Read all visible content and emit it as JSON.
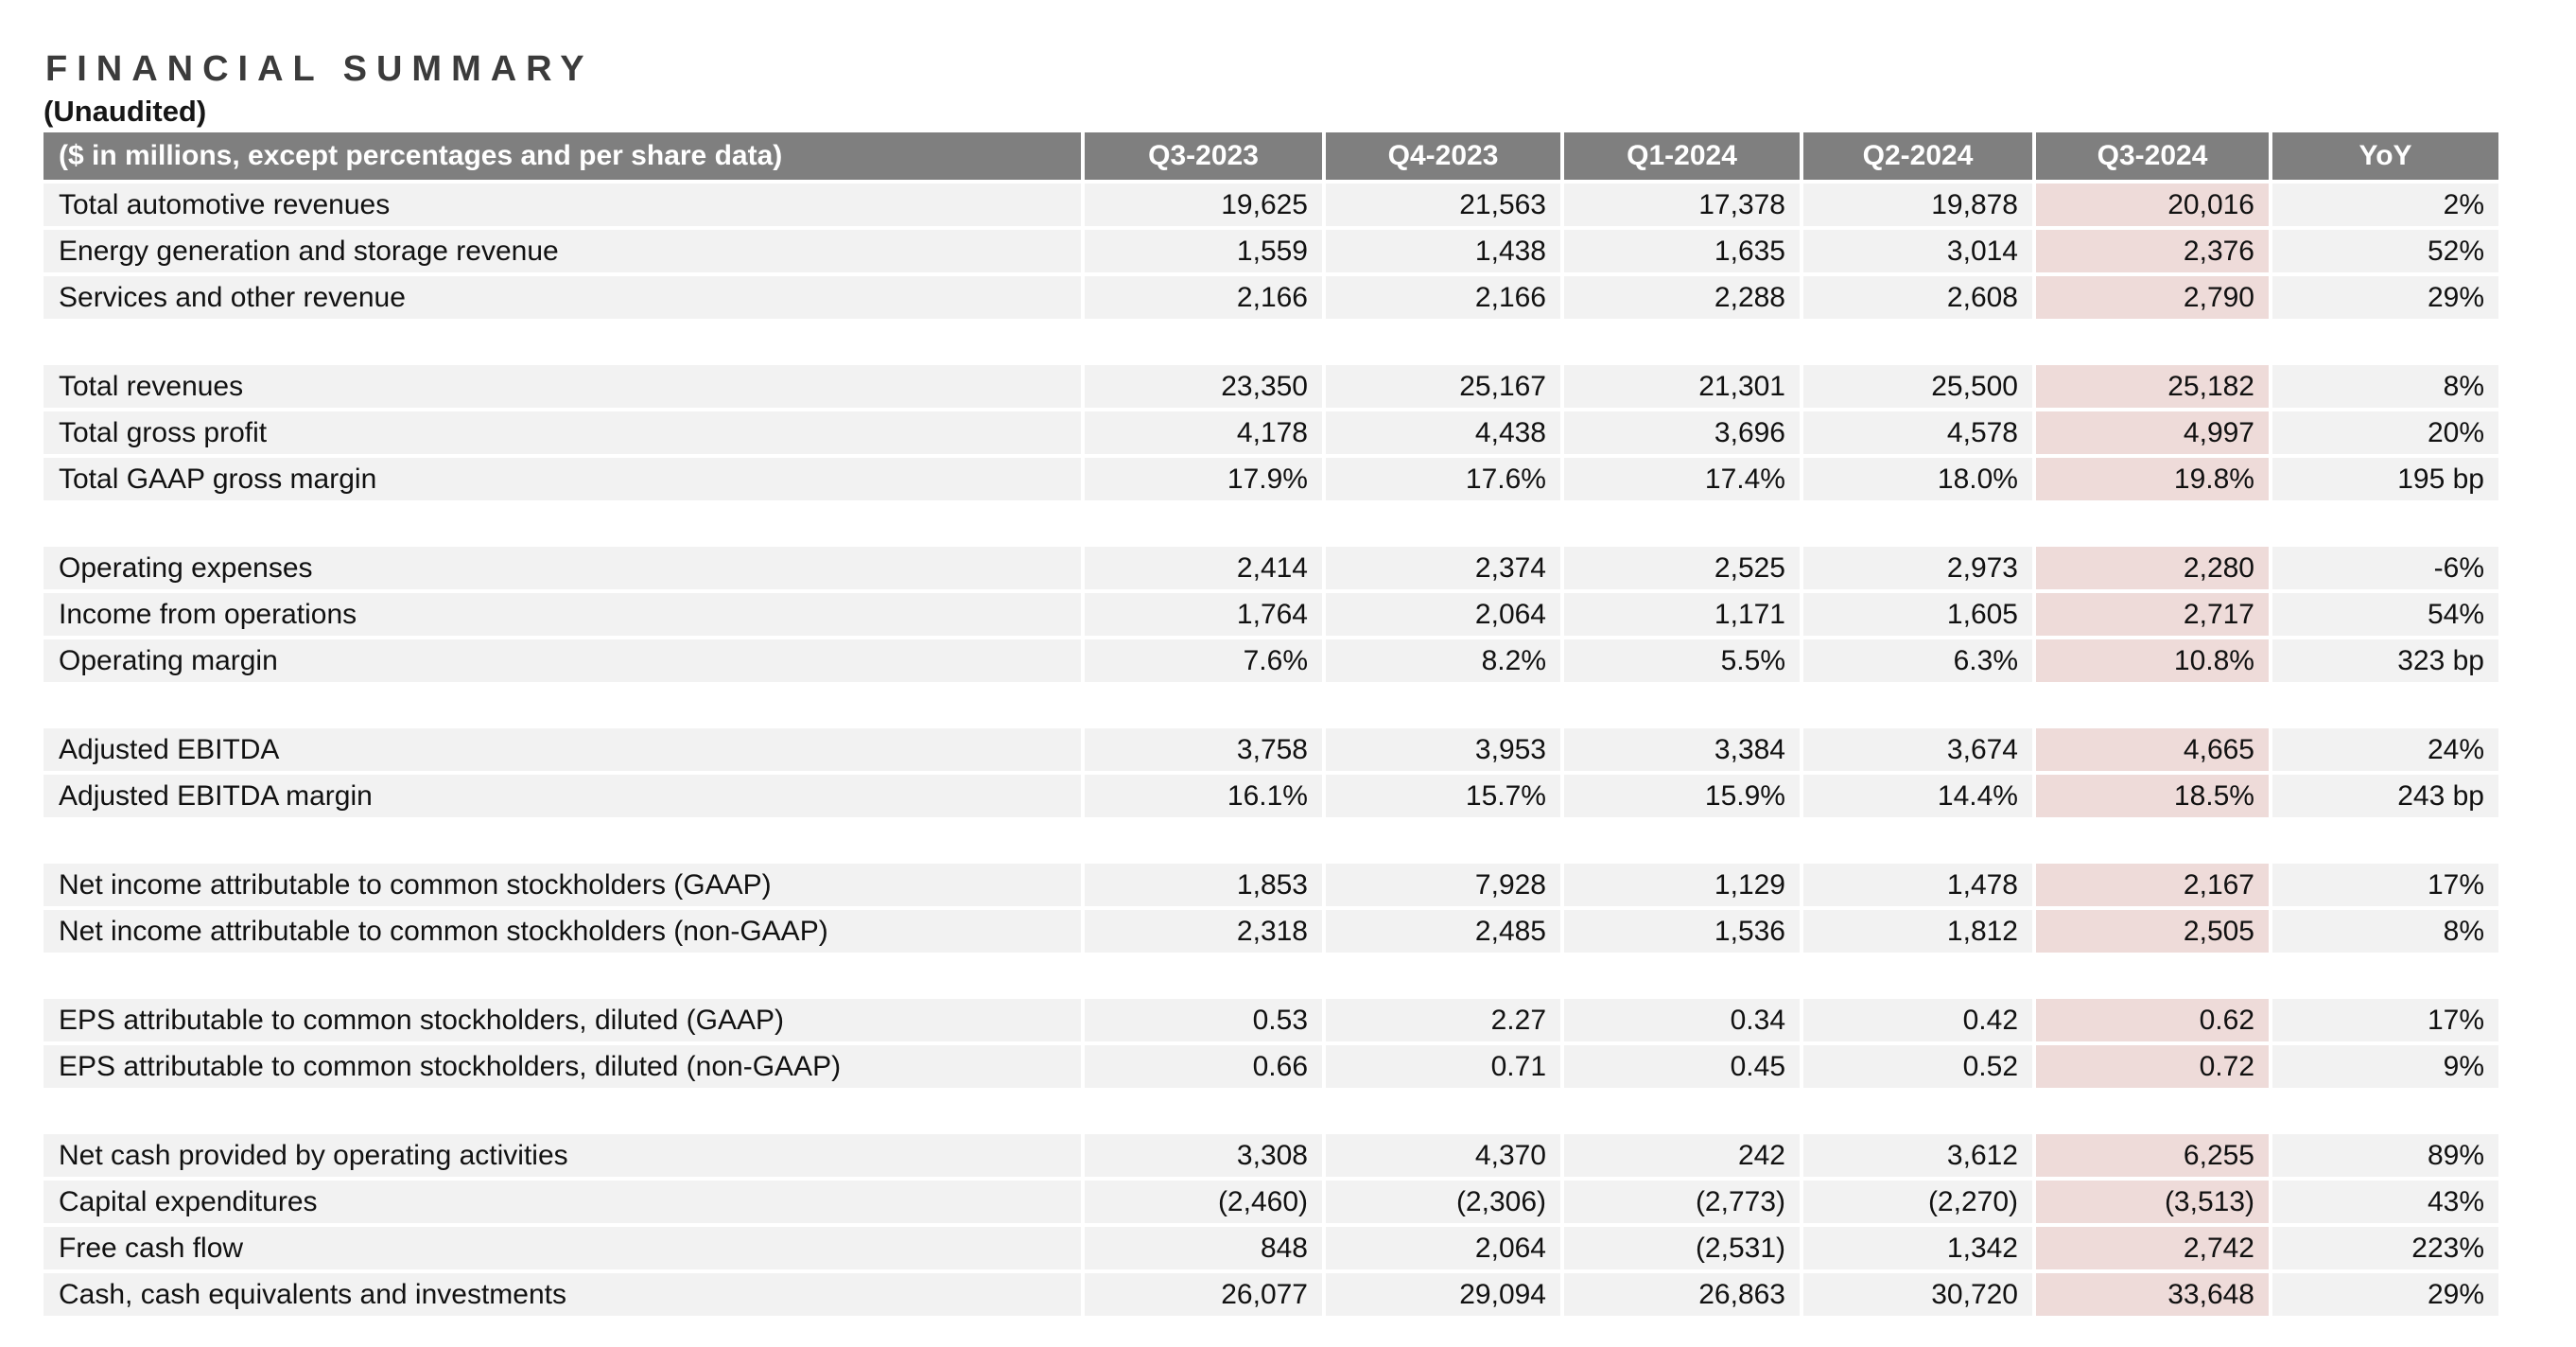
{
  "page": {
    "title": "FINANCIAL SUMMARY",
    "subtitle": "(Unaudited)"
  },
  "table": {
    "unit_label": "($ in millions, except percentages and per share data)",
    "columns": [
      "Q3-2023",
      "Q4-2023",
      "Q1-2024",
      "Q2-2024",
      "Q3-2024",
      "YoY"
    ],
    "highlight_column": "Q3-2024",
    "colors": {
      "header_bg": "#7f7f7f",
      "header_text": "#ffffff",
      "row_bg": "#f2f2f2",
      "highlight_bg": "#eedbd9",
      "title_text": "#3b3b3b"
    },
    "groups": [
      {
        "rows": [
          {
            "label": "Total automotive revenues",
            "values": [
              "19,625",
              "21,563",
              "17,378",
              "19,878",
              "20,016"
            ],
            "yoy": "2%"
          },
          {
            "label": "Energy generation and storage revenue",
            "values": [
              "1,559",
              "1,438",
              "1,635",
              "3,014",
              "2,376"
            ],
            "yoy": "52%"
          },
          {
            "label": "Services and other revenue",
            "values": [
              "2,166",
              "2,166",
              "2,288",
              "2,608",
              "2,790"
            ],
            "yoy": "29%"
          }
        ]
      },
      {
        "rows": [
          {
            "label": "Total revenues",
            "values": [
              "23,350",
              "25,167",
              "21,301",
              "25,500",
              "25,182"
            ],
            "yoy": "8%"
          },
          {
            "label": "Total gross profit",
            "values": [
              "4,178",
              "4,438",
              "3,696",
              "4,578",
              "4,997"
            ],
            "yoy": "20%"
          },
          {
            "label": "Total GAAP gross margin",
            "values": [
              "17.9%",
              "17.6%",
              "17.4%",
              "18.0%",
              "19.8%"
            ],
            "yoy": "195 bp"
          }
        ]
      },
      {
        "rows": [
          {
            "label": "Operating expenses",
            "values": [
              "2,414",
              "2,374",
              "2,525",
              "2,973",
              "2,280"
            ],
            "yoy": "-6%"
          },
          {
            "label": "Income from operations",
            "values": [
              "1,764",
              "2,064",
              "1,171",
              "1,605",
              "2,717"
            ],
            "yoy": "54%"
          },
          {
            "label": "Operating margin",
            "values": [
              "7.6%",
              "8.2%",
              "5.5%",
              "6.3%",
              "10.8%"
            ],
            "yoy": "323 bp"
          }
        ]
      },
      {
        "rows": [
          {
            "label": "Adjusted EBITDA",
            "values": [
              "3,758",
              "3,953",
              "3,384",
              "3,674",
              "4,665"
            ],
            "yoy": "24%"
          },
          {
            "label": "Adjusted EBITDA margin",
            "values": [
              "16.1%",
              "15.7%",
              "15.9%",
              "14.4%",
              "18.5%"
            ],
            "yoy": "243 bp"
          }
        ]
      },
      {
        "rows": [
          {
            "label": "Net income attributable to common stockholders (GAAP)",
            "values": [
              "1,853",
              "7,928",
              "1,129",
              "1,478",
              "2,167"
            ],
            "yoy": "17%"
          },
          {
            "label": "Net income attributable to common stockholders (non-GAAP)",
            "values": [
              "2,318",
              "2,485",
              "1,536",
              "1,812",
              "2,505"
            ],
            "yoy": "8%"
          }
        ]
      },
      {
        "rows": [
          {
            "label": "EPS attributable to common stockholders, diluted (GAAP)",
            "values": [
              "0.53",
              "2.27",
              "0.34",
              "0.42",
              "0.62"
            ],
            "yoy": "17%"
          },
          {
            "label": "EPS attributable to common stockholders, diluted (non-GAAP)",
            "values": [
              "0.66",
              "0.71",
              "0.45",
              "0.52",
              "0.72"
            ],
            "yoy": "9%"
          }
        ]
      },
      {
        "rows": [
          {
            "label": "Net cash provided by operating activities",
            "values": [
              "3,308",
              "4,370",
              "242",
              "3,612",
              "6,255"
            ],
            "yoy": "89%"
          },
          {
            "label": "Capital expenditures",
            "values": [
              "(2,460)",
              "(2,306)",
              "(2,773)",
              "(2,270)",
              "(3,513)"
            ],
            "yoy": "43%"
          },
          {
            "label": "Free cash flow",
            "values": [
              "848",
              "2,064",
              "(2,531)",
              "1,342",
              "2,742"
            ],
            "yoy": "223%"
          },
          {
            "label": "Cash, cash equivalents and investments",
            "values": [
              "26,077",
              "29,094",
              "26,863",
              "30,720",
              "33,648"
            ],
            "yoy": "29%"
          }
        ]
      }
    ]
  }
}
